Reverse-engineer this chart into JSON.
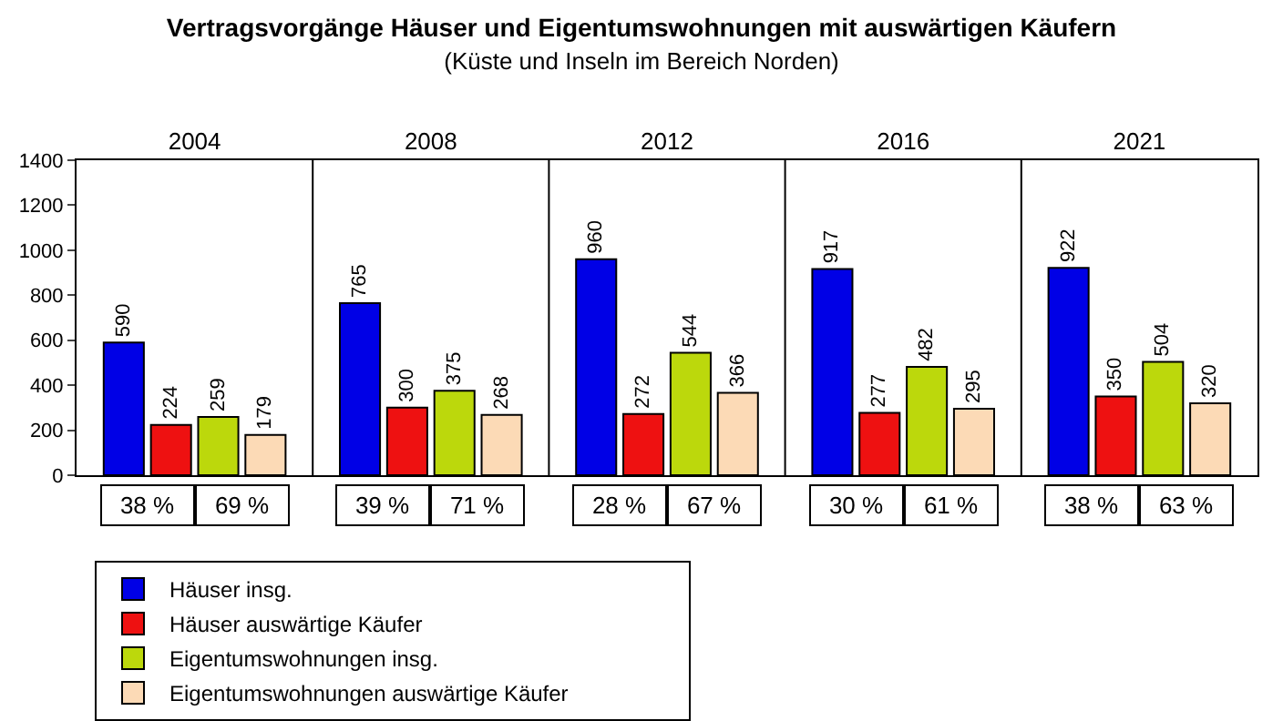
{
  "chart_data": {
    "type": "bar",
    "title": "Vertragsvorgänge Häuser und Eigentumswohnungen mit auswärtigen Käufern",
    "subtitle": "(Küste und Inseln im Bereich Norden)",
    "categories": [
      "2004",
      "2008",
      "2012",
      "2016",
      "2021"
    ],
    "series": [
      {
        "name": "Häuser insg.",
        "color": "#0000e6",
        "values": [
          590,
          765,
          960,
          917,
          922
        ]
      },
      {
        "name": "Häuser auswärtige Käufer",
        "color": "#ee1111",
        "values": [
          224,
          300,
          272,
          277,
          350
        ]
      },
      {
        "name": "Eigentumswohnungen insg.",
        "color": "#bcd80c",
        "values": [
          259,
          375,
          544,
          482,
          504
        ]
      },
      {
        "name": "Eigentumswohnungen auswärtige Käufer",
        "color": "#fcdab6",
        "values": [
          179,
          268,
          366,
          295,
          320
        ]
      }
    ],
    "ylim": [
      0,
      1400
    ],
    "yticks": [
      0,
      200,
      400,
      600,
      800,
      1000,
      1200,
      1400
    ],
    "data_labels": true,
    "grid": false,
    "legend": "bottom",
    "annotations": [
      "38 %",
      "69 %",
      "39 %",
      "71 %",
      "28 %",
      "67 %",
      "30 %",
      "61 %",
      "38 %",
      "63 %"
    ]
  }
}
